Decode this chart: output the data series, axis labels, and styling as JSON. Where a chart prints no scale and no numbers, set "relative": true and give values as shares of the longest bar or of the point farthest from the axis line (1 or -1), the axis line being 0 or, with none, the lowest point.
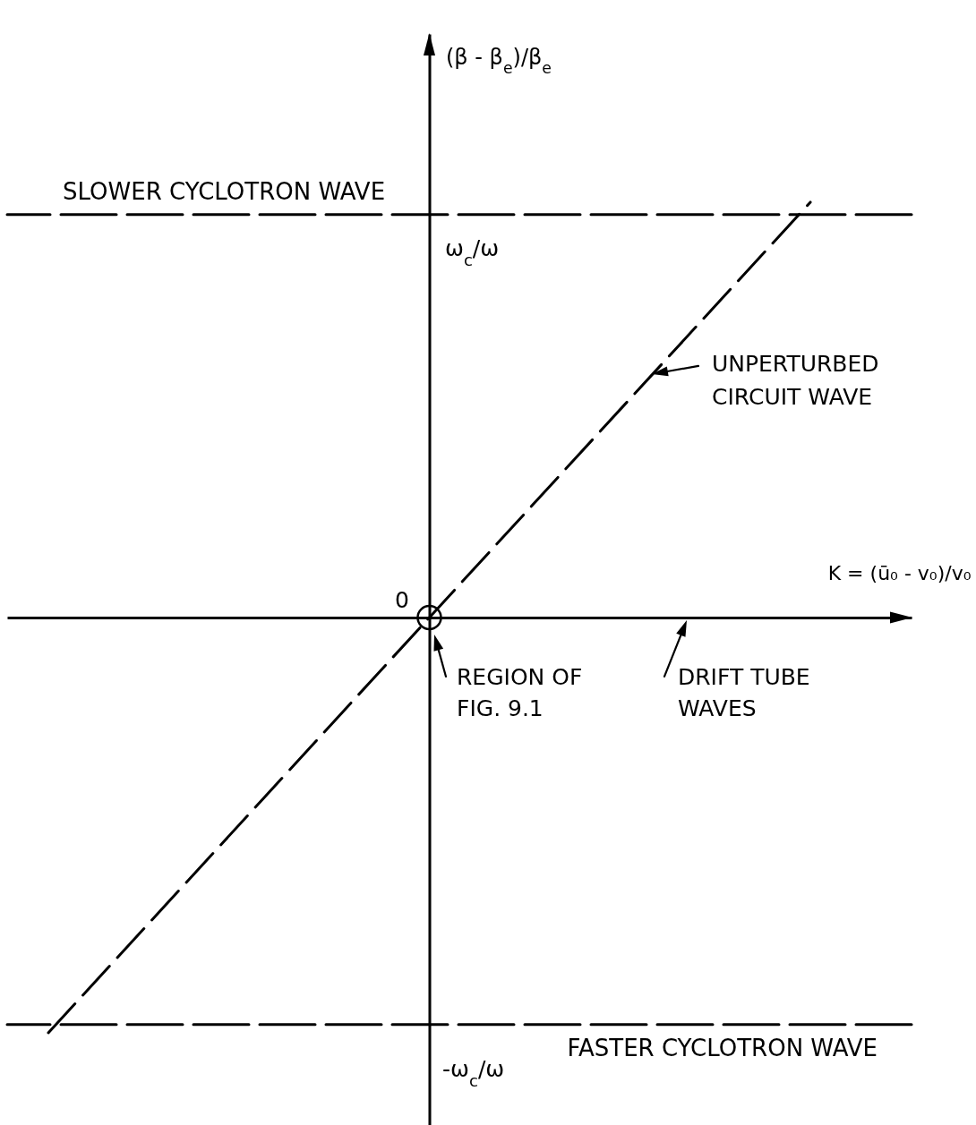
{
  "chart_data": {
    "type": "line",
    "xlabel": "K = (ū₀ - v₀)/v₀",
    "categories": [
      null,
      null,
      null
    ],
    "relative": true,
    "series": [
      {
        "color": "#000000",
        "values": [
          -1,
          0,
          1
        ]
      }
    ],
    "line_style": "dashed",
    "ref_lines": [
      {
        "axis": "y",
        "value": 0.97,
        "label": "SLOWER CYCLOTRON WAVE",
        "color": "#000000",
        "line_style": "dashed"
      },
      {
        "axis": "y",
        "value": -0.98,
        "label": "FASTER CYCLOTRON WAVE",
        "color": "#000000",
        "line_style": "dashed"
      }
    ],
    "annotations": [
      "(β - β$_{e}$)/β$_{e}$",
      {
        "text": "ω$_{c}$/ω",
        "y": 0.97
      },
      "UNPERTURBED\nCIRCUIT WAVE",
      "0",
      "REGION OF\nFIG. 9.1",
      "DRIFT TUBE\nWAVES",
      {
        "text": "-ω$_{c}$/ω",
        "y": -0.98
      }
    ]
  }
}
